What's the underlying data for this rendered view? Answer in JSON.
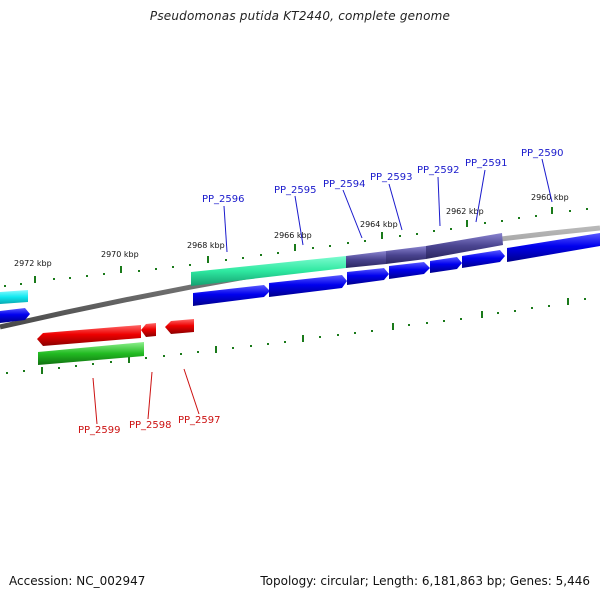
{
  "title": "Pseudomonas putida KT2440, complete genome",
  "footer": {
    "accession": "Accession: NC_002947",
    "summary": "Topology: circular; Length: 6,181,863 bp; Genes: 5,446"
  },
  "colors": {
    "plus_strand_gene": "#0000ee",
    "minus_strand_gene": "#dd0000",
    "label_plus": "#1a1acc",
    "label_minus": "#cc1111",
    "backbone": "#7a7a7a",
    "tick": "#1a7a1a",
    "cds_teal": "#2ee8a0",
    "cds_slate": "#4a4490",
    "cds_cyan": "#11e8f0",
    "cds_green": "#22bb22"
  },
  "scale_ticks": [
    "2972 kbp",
    "2970 kbp",
    "2968 kbp",
    "2966 kbp",
    "2964 kbp",
    "2962 kbp",
    "2960 kbp"
  ],
  "genes_plus": [
    "PP_2596",
    "PP_2595",
    "PP_2594",
    "PP_2593",
    "PP_2592",
    "PP_2591",
    "PP_2590"
  ],
  "genes_minus": [
    "PP_2599",
    "PP_2598",
    "PP_2597"
  ]
}
